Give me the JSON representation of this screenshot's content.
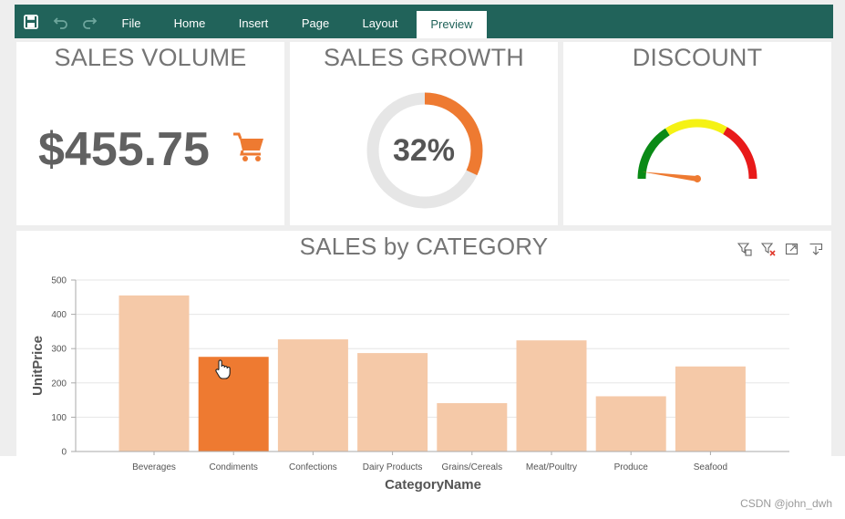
{
  "ribbon": {
    "tabs": [
      {
        "label": "File"
      },
      {
        "label": "Home"
      },
      {
        "label": "Insert"
      },
      {
        "label": "Page"
      },
      {
        "label": "Layout"
      },
      {
        "label": "Preview"
      }
    ],
    "active_tab": "Preview",
    "icons": [
      "save-icon",
      "undo-icon",
      "redo-icon"
    ],
    "color": "#21635a"
  },
  "sales_volume": {
    "title": "SALES VOLUME",
    "value": "$455.75",
    "icon": "cart-icon"
  },
  "sales_growth": {
    "title": "SALES GROWTH",
    "value": "32%",
    "percent": 32
  },
  "discount": {
    "title": "DISCOUNT",
    "gauge_level": 0.04
  },
  "category_panel": {
    "title": "SALES by CATEGORY",
    "tools": [
      "filter-icon",
      "clear-filter-icon",
      "maximize-icon",
      "export-icon"
    ]
  },
  "chart_data": {
    "type": "bar",
    "title": "SALES by CATEGORY",
    "xlabel": "CategoryName",
    "ylabel": "UnitPrice",
    "categories": [
      "Beverages",
      "Condiments",
      "Confections",
      "Dairy Products",
      "Grains/Cereals",
      "Meat/Poultry",
      "Produce",
      "Seafood"
    ],
    "values": [
      455,
      276,
      327,
      287,
      141,
      324,
      161,
      248
    ],
    "highlighted": "Condiments",
    "ylim": [
      0,
      500
    ],
    "yticks": [
      0,
      100,
      200,
      300,
      400,
      500
    ],
    "grid": true,
    "colors": {
      "bar": "#f5c9a8",
      "highlight": "#ee7a31"
    }
  },
  "watermark": "CSDN @john_dwh"
}
